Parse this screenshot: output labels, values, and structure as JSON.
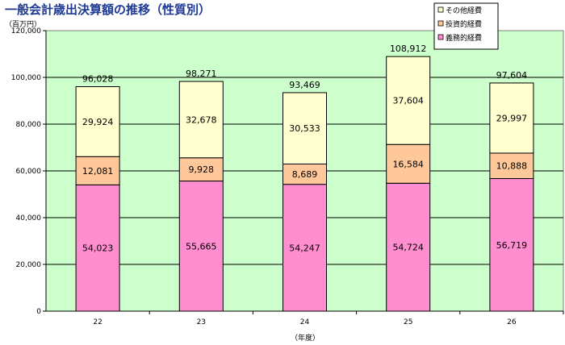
{
  "chart_data": {
    "type": "bar",
    "stacked": true,
    "title": "一般会計歳出決算額の推移（性質別）",
    "unit_label": "（百万円）",
    "xlabel": "（年度）",
    "categories": [
      "22",
      "23",
      "24",
      "25",
      "26"
    ],
    "series": [
      {
        "name": "義務的経費",
        "color": "#ff8ed0",
        "values": [
          54023,
          55665,
          54247,
          54724,
          56719
        ],
        "labels": [
          "54,023",
          "55,665",
          "54,247",
          "54,724",
          "56,719"
        ]
      },
      {
        "name": "投資的経費",
        "color": "#ffc89a",
        "values": [
          12081,
          9928,
          8689,
          16584,
          10888
        ],
        "labels": [
          "12,081",
          "9,928",
          "8,689",
          "16,584",
          "10,888"
        ]
      },
      {
        "name": "その他経費",
        "color": "#ffffd0",
        "values": [
          29924,
          32678,
          30533,
          37604,
          29997
        ],
        "labels": [
          "29,924",
          "32,678",
          "30,533",
          "37,604",
          "29,997"
        ]
      }
    ],
    "totals": [
      "96,028",
      "98,271",
      "93,469",
      "108,912",
      "97,604"
    ],
    "ylim": [
      0,
      120000
    ],
    "yticks": [
      0,
      20000,
      40000,
      60000,
      80000,
      100000,
      120000
    ],
    "ytick_labels": [
      "0",
      "20,000",
      "40,000",
      "60,000",
      "80,000",
      "100,000",
      "120,000"
    ],
    "grid": true,
    "legend_position": "top-right",
    "plot_background": "#ccffcc"
  }
}
